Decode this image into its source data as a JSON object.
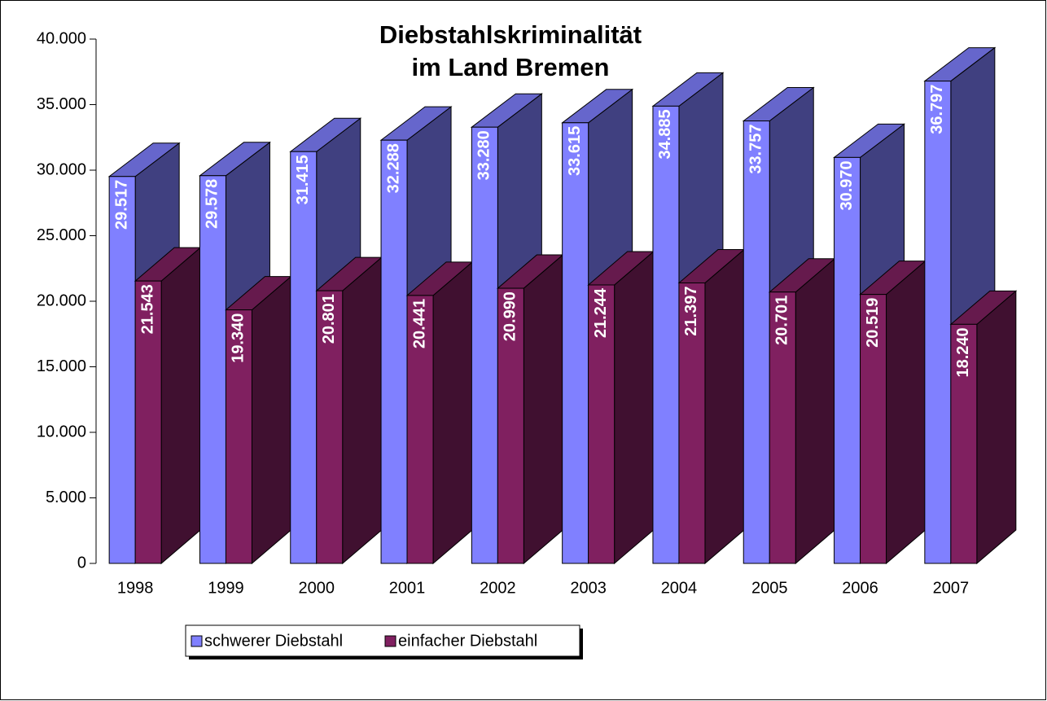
{
  "chart_data": {
    "type": "bar3d",
    "title": [
      "Diebstahlskriminalität",
      "im Land Bremen"
    ],
    "categories": [
      "1998",
      "1999",
      "2000",
      "2001",
      "2002",
      "2003",
      "2004",
      "2005",
      "2006",
      "2007"
    ],
    "series": [
      {
        "name": "schwerer Diebstahl",
        "color": "#8080ff",
        "values": [
          29517,
          29578,
          31415,
          32288,
          33280,
          33615,
          34885,
          33757,
          30970,
          36797
        ],
        "value_labels": [
          "29.517",
          "29.578",
          "31.415",
          "32.288",
          "33.280",
          "33.615",
          "34.885",
          "33.757",
          "30.970",
          "36.797"
        ]
      },
      {
        "name": "einfacher Diebstahl",
        "color": "#802060",
        "values": [
          21543,
          19340,
          20801,
          20441,
          20990,
          21244,
          21397,
          20701,
          20519,
          18240
        ],
        "value_labels": [
          "21.543",
          "19.340",
          "20.801",
          "20.441",
          "20.990",
          "21.244",
          "21.397",
          "20.701",
          "20.519",
          "18.240"
        ]
      }
    ],
    "ylim": [
      0,
      40000
    ],
    "yticks": [
      0,
      {
        "value": 5000,
        "label": "5.000"
      },
      {
        "value": 10000,
        "label": "10.000"
      },
      {
        "value": 15000,
        "label": "15.000"
      },
      {
        "value": 20000,
        "label": "20.000"
      },
      {
        "value": 25000,
        "label": "25.000"
      },
      {
        "value": 30000,
        "label": "30.000"
      },
      {
        "value": 35000,
        "label": "35.000"
      },
      {
        "value": 40000,
        "label": "40.000"
      }
    ],
    "legend": "bottom-left"
  }
}
